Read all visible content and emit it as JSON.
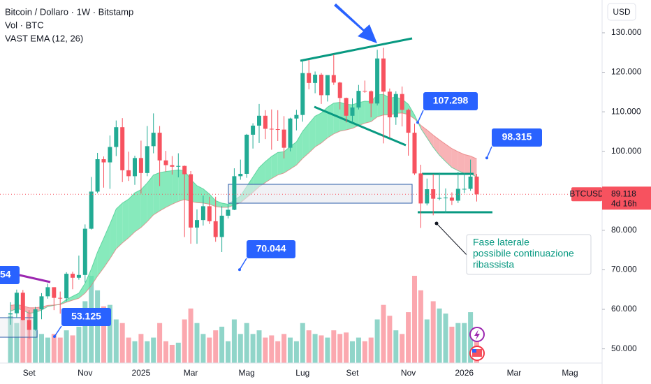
{
  "chart_data": {
    "type": "candlestick",
    "title": "Bitcoin / Dollaro · 1W · Bitstamp",
    "indicators": [
      "Vol · BTC",
      "VAST EMA (12, 26)"
    ],
    "currency": "USD",
    "colors": {
      "up": "#22ab94",
      "down": "#f7525f",
      "band_up": "#5fe3a6",
      "band_down": "#f59a9e"
    },
    "categories": [
      null,
      null,
      null,
      "Set",
      null,
      null,
      null,
      null,
      null,
      null,
      null,
      null,
      "Nov",
      null,
      null,
      null,
      null,
      null,
      null,
      null,
      null,
      "2025",
      null,
      null,
      null,
      null,
      null,
      null,
      null,
      "Mar",
      null,
      null,
      null,
      null,
      null,
      null,
      null,
      null,
      "Mag",
      null,
      null,
      null,
      null,
      null,
      null,
      null,
      null,
      "Lug",
      null,
      null,
      null,
      null,
      null,
      null,
      null,
      "Set",
      null,
      null,
      null,
      null,
      null,
      null,
      null,
      null,
      "Nov",
      null,
      null,
      null,
      null,
      null,
      null,
      null,
      null,
      "2026",
      null,
      null,
      null,
      null,
      null,
      null,
      null,
      "Mar",
      null,
      null,
      null,
      null,
      null,
      null,
      null,
      null,
      "Mag",
      null,
      null,
      null,
      null,
      null
    ],
    "open": [
      58700,
      59000,
      64200,
      57300,
      54800,
      60000,
      63300,
      65600,
      62900,
      62800,
      69000,
      68000,
      68700,
      80400,
      89800,
      98000,
      97200,
      101100,
      106100,
      95200,
      93700,
      98300,
      94500,
      101300,
      104700,
      97700,
      96500,
      96100,
      96300,
      94200,
      80700,
      82600,
      86100,
      82300,
      78300,
      83700,
      85200,
      93700,
      94300,
      104200,
      106500,
      109000,
      105700,
      105600,
      105500,
      100900,
      108300,
      109200,
      119800,
      117300,
      119400,
      114200,
      119300,
      117400,
      113500,
      109000,
      111100,
      115300,
      115200,
      112100,
      123500,
      115100,
      108600,
      114500,
      110500,
      104700,
      94400,
      86800,
      90400,
      88000,
      88200,
      88300,
      87500,
      90500,
      90500,
      93600,
      null,
      null,
      null,
      null,
      null,
      null,
      null,
      null,
      null,
      null,
      null,
      null,
      null,
      null,
      null,
      null,
      null,
      null,
      null,
      null
    ],
    "high": [
      61800,
      65000,
      64900,
      59800,
      60600,
      64100,
      66500,
      65600,
      64500,
      69400,
      69500,
      73600,
      81500,
      93500,
      99600,
      98700,
      104000,
      107800,
      108400,
      99900,
      98900,
      102700,
      106400,
      109600,
      106400,
      100100,
      98800,
      99500,
      96400,
      95000,
      85300,
      88800,
      88500,
      88500,
      86100,
      86500,
      95700,
      97900,
      104400,
      107100,
      112000,
      110400,
      110600,
      110400,
      108900,
      108500,
      110500,
      123200,
      123100,
      120200,
      119800,
      119300,
      124500,
      117600,
      113600,
      113400,
      116800,
      117900,
      115400,
      125700,
      126200,
      115900,
      115200,
      116400,
      110800,
      107000,
      96600,
      93100,
      94200,
      94600,
      90600,
      89600,
      94800,
      94500,
      97900,
      94300,
      null,
      null,
      null,
      null,
      null,
      null,
      null,
      null,
      null,
      null,
      null,
      null,
      null,
      null,
      null,
      null,
      null,
      null,
      null,
      null
    ],
    "low": [
      56100,
      57800,
      57200,
      52500,
      54600,
      57500,
      62700,
      59800,
      58900,
      62000,
      65100,
      67500,
      66800,
      80200,
      89400,
      90800,
      90500,
      98800,
      92200,
      92500,
      91500,
      89300,
      93700,
      99500,
      91200,
      94800,
      94100,
      93400,
      78300,
      76600,
      76600,
      81200,
      81600,
      77100,
      74500,
      83000,
      85100,
      92800,
      93300,
      100700,
      102100,
      103100,
      100400,
      102600,
      98200,
      100000,
      105300,
      107500,
      115700,
      114700,
      112000,
      112600,
      116800,
      110600,
      107300,
      107300,
      110600,
      114800,
      108600,
      111600,
      102000,
      103500,
      106700,
      106300,
      98900,
      94000,
      80600,
      86300,
      83800,
      87600,
      84400,
      86400,
      86900,
      89400,
      90000,
      87300,
      null,
      null,
      null,
      null,
      null,
      null,
      null,
      null,
      null,
      null,
      null,
      null,
      null,
      null,
      null,
      null,
      null,
      null,
      null,
      null
    ],
    "close": [
      59000,
      64200,
      57300,
      54800,
      60000,
      63300,
      65600,
      62900,
      62800,
      69000,
      68000,
      68700,
      80400,
      89800,
      98000,
      97200,
      101100,
      106100,
      95200,
      93700,
      98300,
      94500,
      101300,
      104700,
      97700,
      96500,
      96100,
      96300,
      94200,
      80700,
      82600,
      86100,
      82300,
      78300,
      83700,
      85200,
      93700,
      94300,
      104200,
      106500,
      109000,
      105700,
      105600,
      105500,
      100900,
      108300,
      109200,
      119800,
      117300,
      119400,
      114200,
      119300,
      117400,
      113500,
      109000,
      111100,
      115300,
      115200,
      112100,
      123500,
      115100,
      108600,
      114500,
      110500,
      104700,
      94400,
      86800,
      90400,
      88000,
      88200,
      88300,
      87500,
      90500,
      90500,
      93600,
      89118,
      null,
      null,
      null,
      null,
      null,
      null,
      null,
      null,
      null,
      null,
      null,
      null,
      null,
      null,
      null,
      null,
      null,
      null,
      null,
      null
    ],
    "volume": [
      65,
      55,
      60,
      70,
      45,
      40,
      35,
      40,
      35,
      45,
      38,
      50,
      85,
      120,
      100,
      78,
      80,
      60,
      55,
      35,
      30,
      40,
      30,
      35,
      55,
      30,
      25,
      28,
      60,
      75,
      55,
      40,
      35,
      45,
      50,
      30,
      60,
      40,
      55,
      40,
      45,
      35,
      38,
      30,
      40,
      35,
      30,
      55,
      45,
      40,
      38,
      35,
      45,
      40,
      42,
      30,
      35,
      30,
      35,
      60,
      80,
      65,
      45,
      40,
      70,
      120,
      100,
      60,
      85,
      75,
      68,
      50,
      55,
      55,
      70,
      45,
      null,
      null,
      null,
      null,
      null,
      null,
      null,
      null,
      null,
      null,
      null,
      null,
      null,
      null,
      null,
      null,
      null,
      null,
      null,
      null
    ],
    "ema12": [
      59500,
      60200,
      59800,
      59000,
      59200,
      59800,
      60700,
      61000,
      61300,
      62500,
      63300,
      64100,
      66600,
      70200,
      74500,
      78000,
      81600,
      85400,
      86900,
      87900,
      89500,
      90300,
      92000,
      94000,
      94600,
      94900,
      95100,
      95300,
      95100,
      92900,
      91300,
      90500,
      89200,
      87500,
      86900,
      86600,
      87700,
      88700,
      91100,
      93500,
      95900,
      97400,
      98700,
      99700,
      99900,
      101200,
      102400,
      105100,
      107000,
      108900,
      109700,
      111200,
      112200,
      112400,
      111900,
      111800,
      112300,
      112700,
      112600,
      114300,
      114400,
      113500,
      113700,
      113200,
      111900,
      109200,
      105800,
      103400,
      101000,
      99000,
      97400,
      95900,
      95100,
      94400,
      94300,
      93500,
      null,
      null,
      null,
      null,
      null,
      null,
      null,
      null,
      null,
      null,
      null,
      null,
      null,
      null,
      null,
      null,
      null,
      null,
      null,
      null
    ],
    "ema26": [
      61000,
      61200,
      60900,
      60400,
      60400,
      60600,
      61000,
      61100,
      61200,
      61800,
      62300,
      62800,
      64100,
      66000,
      68400,
      70500,
      72800,
      75300,
      76800,
      78100,
      79600,
      80700,
      82200,
      83900,
      84900,
      85800,
      86600,
      87300,
      87800,
      87300,
      87000,
      86900,
      86600,
      86000,
      85800,
      85800,
      86400,
      87000,
      88300,
      89600,
      91000,
      92100,
      93100,
      94000,
      94500,
      95500,
      96500,
      98200,
      99600,
      101100,
      102100,
      103400,
      104400,
      105100,
      105400,
      105800,
      106500,
      107100,
      107500,
      108700,
      109200,
      109200,
      109600,
      109700,
      109300,
      108200,
      106600,
      105400,
      104100,
      102900,
      101800,
      100700,
      99900,
      99200,
      98800,
      98100,
      null,
      null,
      null,
      null,
      null,
      null,
      null,
      null,
      null,
      null,
      null,
      null,
      null,
      null,
      null,
      null,
      null,
      null,
      null,
      null
    ],
    "ylim": [
      46400,
      138300
    ],
    "yticks": [
      {
        "value": 50000,
        "label": "50.000"
      },
      {
        "value": 60000,
        "label": "60.000"
      },
      {
        "value": 70000,
        "label": "70.000"
      },
      {
        "value": 80000,
        "label": "80.000"
      },
      {
        "value": 90000,
        "label": "90.000"
      },
      {
        "value": 100000,
        "label": "100.000"
      },
      {
        "value": 110000,
        "label": "110.000"
      },
      {
        "value": 120000,
        "label": "120.000"
      },
      {
        "value": 130000,
        "label": "130.000"
      }
    ],
    "price_label": {
      "symbol": "BTCUSD",
      "value": 89118,
      "label": "89.118",
      "countdown": "4d 16h"
    },
    "annotations": [
      {
        "value": 107298,
        "label": "107.298"
      },
      {
        "value": 98315,
        "label": "98.315"
      },
      {
        "value": 70044,
        "label": "70.044"
      },
      {
        "value": 53125,
        "label": "53.125"
      }
    ],
    "clipped_label": "54",
    "note": [
      "Fase laterale",
      "possibile continuazione",
      "ribassista"
    ]
  }
}
